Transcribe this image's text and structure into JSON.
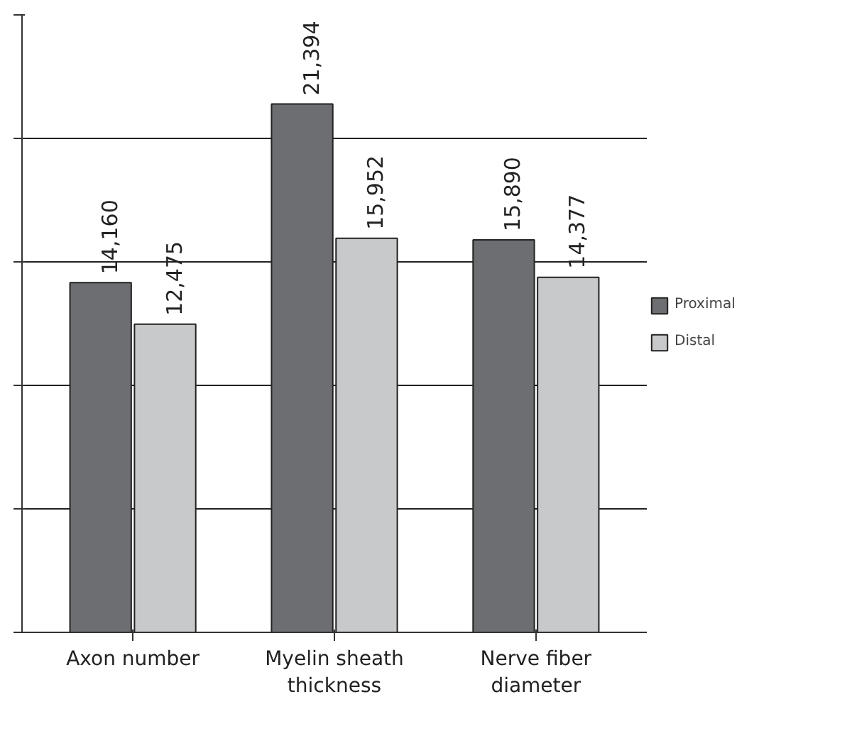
{
  "chart_data": {
    "type": "bar",
    "categories": [
      "Axon number",
      "Myelin sheath\nthickness",
      "Nerve fiber\ndiameter"
    ],
    "series": [
      {
        "name": "Proximal",
        "color": "#6d6e71",
        "values": [
          14160,
          21394,
          15890
        ],
        "value_labels": [
          "14,160",
          "21,394",
          "15,890"
        ]
      },
      {
        "name": "Distal",
        "color": "#c8c9cb",
        "values": [
          12475,
          15952,
          14377
        ],
        "value_labels": [
          "12,475",
          "15,952",
          "14,377"
        ]
      }
    ],
    "ylim": [
      0,
      25000
    ],
    "yticks": [
      {
        "value": 0,
        "label": null
      },
      {
        "value": 5000,
        "label": null
      },
      {
        "value": 10000,
        "label": null
      },
      {
        "value": 15000,
        "label": null
      },
      {
        "value": 20000,
        "label": null
      },
      {
        "value": 25000,
        "label": null
      }
    ],
    "tick_labels": "x",
    "grid": "y",
    "legend": "right"
  }
}
